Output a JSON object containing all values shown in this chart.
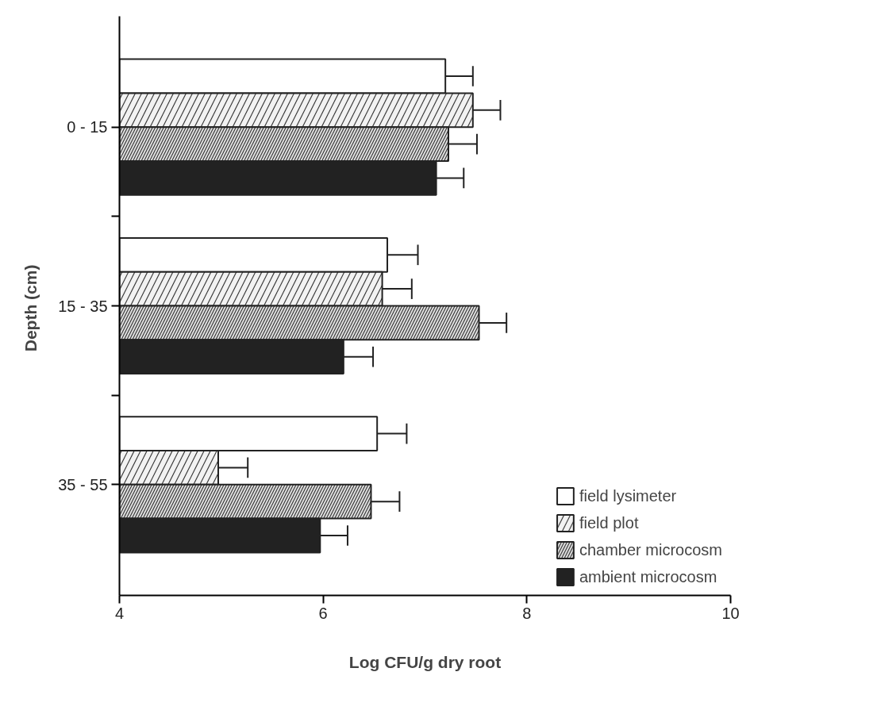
{
  "chart_data": {
    "type": "bar",
    "orientation": "horizontal",
    "xlabel": "Log CFU/g dry root",
    "ylabel": "Depth  (cm)",
    "categories": [
      "0 - 15",
      "15 - 35",
      "35 - 55"
    ],
    "series": [
      {
        "name": "field lysimeter",
        "color": "#ffffff",
        "values": [
          7.2,
          6.63,
          6.53
        ],
        "errors": [
          [
            7.2,
            7.47
          ],
          [
            6.63,
            6.93
          ],
          [
            6.53,
            6.82
          ]
        ]
      },
      {
        "name": "field plot",
        "color": "#f2f2f2",
        "values": [
          7.47,
          6.58,
          4.97
        ],
        "errors": [
          [
            7.47,
            7.74
          ],
          [
            6.58,
            6.87
          ],
          [
            4.97,
            5.26
          ]
        ]
      },
      {
        "name": "chamber microcosm",
        "color": "#e0e0e0",
        "values": [
          7.23,
          7.53,
          6.47
        ],
        "errors": [
          [
            7.23,
            7.51
          ],
          [
            7.53,
            7.8
          ],
          [
            6.47,
            6.75
          ]
        ]
      },
      {
        "name": "ambient microcosm",
        "color": "#222222",
        "values": [
          7.11,
          6.2,
          5.97
        ],
        "errors": [
          [
            7.11,
            7.38
          ],
          [
            6.2,
            6.49
          ],
          [
            5.97,
            6.24
          ]
        ]
      }
    ],
    "xlim": [
      4,
      10
    ],
    "xticks": [
      4,
      6,
      8,
      10
    ],
    "grid": false,
    "legend": "bottom right"
  }
}
